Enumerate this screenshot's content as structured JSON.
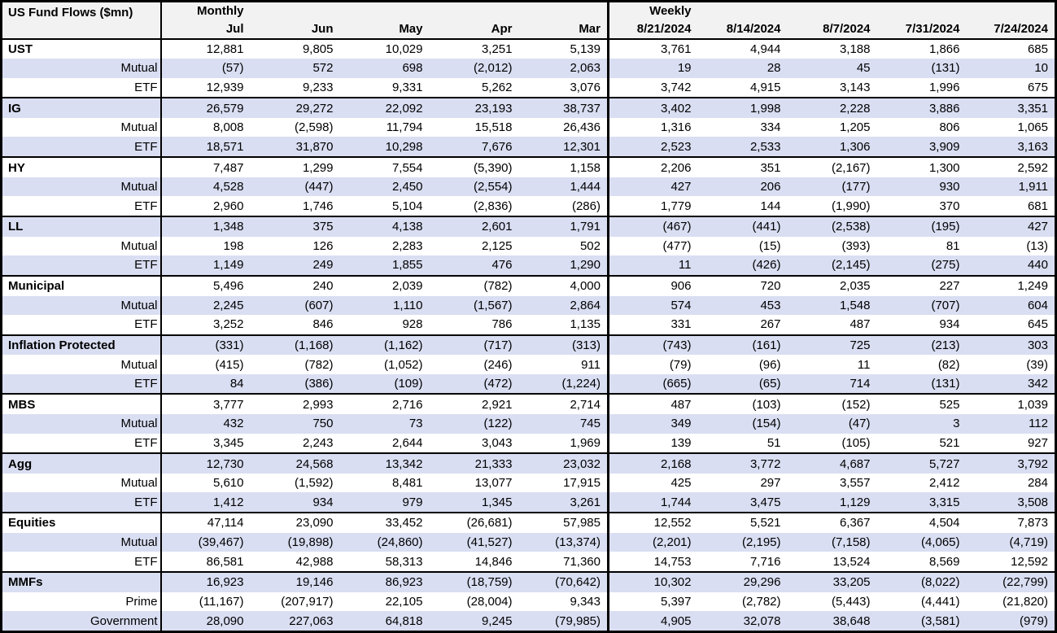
{
  "table": {
    "title": "US Fund Flows ($mn)",
    "sections": [
      {
        "label": "Monthly",
        "columns": [
          "Jul",
          "Jun",
          "May",
          "Apr",
          "Mar"
        ]
      },
      {
        "label": "Weekly",
        "columns": [
          "8/21/2024",
          "8/14/2024",
          "8/7/2024",
          "7/31/2024",
          "7/24/2024"
        ]
      }
    ],
    "groups": [
      {
        "name": "UST",
        "rows": [
          {
            "label": "UST",
            "monthly": [
              "12,881",
              "9,805",
              "10,029",
              "3,251",
              "5,139"
            ],
            "weekly": [
              "3,761",
              "4,944",
              "3,188",
              "1,866",
              "685"
            ]
          },
          {
            "label": "Mutual",
            "monthly": [
              "(57)",
              "572",
              "698",
              "(2,012)",
              "2,063"
            ],
            "weekly": [
              "19",
              "28",
              "45",
              "(131)",
              "10"
            ]
          },
          {
            "label": "ETF",
            "monthly": [
              "12,939",
              "9,233",
              "9,331",
              "5,262",
              "3,076"
            ],
            "weekly": [
              "3,742",
              "4,915",
              "3,143",
              "1,996",
              "675"
            ]
          }
        ]
      },
      {
        "name": "IG",
        "rows": [
          {
            "label": "IG",
            "monthly": [
              "26,579",
              "29,272",
              "22,092",
              "23,193",
              "38,737"
            ],
            "weekly": [
              "3,402",
              "1,998",
              "2,228",
              "3,886",
              "3,351"
            ]
          },
          {
            "label": "Mutual",
            "monthly": [
              "8,008",
              "(2,598)",
              "11,794",
              "15,518",
              "26,436"
            ],
            "weekly": [
              "1,316",
              "334",
              "1,205",
              "806",
              "1,065"
            ]
          },
          {
            "label": "ETF",
            "monthly": [
              "18,571",
              "31,870",
              "10,298",
              "7,676",
              "12,301"
            ],
            "weekly": [
              "2,523",
              "2,533",
              "1,306",
              "3,909",
              "3,163"
            ]
          }
        ]
      },
      {
        "name": "HY",
        "rows": [
          {
            "label": "HY",
            "monthly": [
              "7,487",
              "1,299",
              "7,554",
              "(5,390)",
              "1,158"
            ],
            "weekly": [
              "2,206",
              "351",
              "(2,167)",
              "1,300",
              "2,592"
            ]
          },
          {
            "label": "Mutual",
            "monthly": [
              "4,528",
              "(447)",
              "2,450",
              "(2,554)",
              "1,444"
            ],
            "weekly": [
              "427",
              "206",
              "(177)",
              "930",
              "1,911"
            ]
          },
          {
            "label": "ETF",
            "monthly": [
              "2,960",
              "1,746",
              "5,104",
              "(2,836)",
              "(286)"
            ],
            "weekly": [
              "1,779",
              "144",
              "(1,990)",
              "370",
              "681"
            ]
          }
        ]
      },
      {
        "name": "LL",
        "rows": [
          {
            "label": "LL",
            "monthly": [
              "1,348",
              "375",
              "4,138",
              "2,601",
              "1,791"
            ],
            "weekly": [
              "(467)",
              "(441)",
              "(2,538)",
              "(195)",
              "427"
            ]
          },
          {
            "label": "Mutual",
            "monthly": [
              "198",
              "126",
              "2,283",
              "2,125",
              "502"
            ],
            "weekly": [
              "(477)",
              "(15)",
              "(393)",
              "81",
              "(13)"
            ]
          },
          {
            "label": "ETF",
            "monthly": [
              "1,149",
              "249",
              "1,855",
              "476",
              "1,290"
            ],
            "weekly": [
              "11",
              "(426)",
              "(2,145)",
              "(275)",
              "440"
            ]
          }
        ]
      },
      {
        "name": "Municipal",
        "rows": [
          {
            "label": "Municipal",
            "monthly": [
              "5,496",
              "240",
              "2,039",
              "(782)",
              "4,000"
            ],
            "weekly": [
              "906",
              "720",
              "2,035",
              "227",
              "1,249"
            ]
          },
          {
            "label": "Mutual",
            "monthly": [
              "2,245",
              "(607)",
              "1,110",
              "(1,567)",
              "2,864"
            ],
            "weekly": [
              "574",
              "453",
              "1,548",
              "(707)",
              "604"
            ]
          },
          {
            "label": "ETF",
            "monthly": [
              "3,252",
              "846",
              "928",
              "786",
              "1,135"
            ],
            "weekly": [
              "331",
              "267",
              "487",
              "934",
              "645"
            ]
          }
        ]
      },
      {
        "name": "Inflation Protected",
        "rows": [
          {
            "label": "Inflation Protected",
            "monthly": [
              "(331)",
              "(1,168)",
              "(1,162)",
              "(717)",
              "(313)"
            ],
            "weekly": [
              "(743)",
              "(161)",
              "725",
              "(213)",
              "303"
            ]
          },
          {
            "label": "Mutual",
            "monthly": [
              "(415)",
              "(782)",
              "(1,052)",
              "(246)",
              "911"
            ],
            "weekly": [
              "(79)",
              "(96)",
              "11",
              "(82)",
              "(39)"
            ]
          },
          {
            "label": "ETF",
            "monthly": [
              "84",
              "(386)",
              "(109)",
              "(472)",
              "(1,224)"
            ],
            "weekly": [
              "(665)",
              "(65)",
              "714",
              "(131)",
              "342"
            ]
          }
        ]
      },
      {
        "name": "MBS",
        "rows": [
          {
            "label": "MBS",
            "monthly": [
              "3,777",
              "2,993",
              "2,716",
              "2,921",
              "2,714"
            ],
            "weekly": [
              "487",
              "(103)",
              "(152)",
              "525",
              "1,039"
            ]
          },
          {
            "label": "Mutual",
            "monthly": [
              "432",
              "750",
              "73",
              "(122)",
              "745"
            ],
            "weekly": [
              "349",
              "(154)",
              "(47)",
              "3",
              "112"
            ]
          },
          {
            "label": "ETF",
            "monthly": [
              "3,345",
              "2,243",
              "2,644",
              "3,043",
              "1,969"
            ],
            "weekly": [
              "139",
              "51",
              "(105)",
              "521",
              "927"
            ]
          }
        ]
      },
      {
        "name": "Agg",
        "rows": [
          {
            "label": "Agg",
            "monthly": [
              "12,730",
              "24,568",
              "13,342",
              "21,333",
              "23,032"
            ],
            "weekly": [
              "2,168",
              "3,772",
              "4,687",
              "5,727",
              "3,792"
            ]
          },
          {
            "label": "Mutual",
            "monthly": [
              "5,610",
              "(1,592)",
              "8,481",
              "13,077",
              "17,915"
            ],
            "weekly": [
              "425",
              "297",
              "3,557",
              "2,412",
              "284"
            ]
          },
          {
            "label": "ETF",
            "monthly": [
              "1,412",
              "934",
              "979",
              "1,345",
              "3,261"
            ],
            "weekly": [
              "1,744",
              "3,475",
              "1,129",
              "3,315",
              "3,508"
            ]
          }
        ]
      },
      {
        "name": "Equities",
        "rows": [
          {
            "label": "Equities",
            "monthly": [
              "47,114",
              "23,090",
              "33,452",
              "(26,681)",
              "57,985"
            ],
            "weekly": [
              "12,552",
              "5,521",
              "6,367",
              "4,504",
              "7,873"
            ]
          },
          {
            "label": "Mutual",
            "monthly": [
              "(39,467)",
              "(19,898)",
              "(24,860)",
              "(41,527)",
              "(13,374)"
            ],
            "weekly": [
              "(2,201)",
              "(2,195)",
              "(7,158)",
              "(4,065)",
              "(4,719)"
            ]
          },
          {
            "label": "ETF",
            "monthly": [
              "86,581",
              "42,988",
              "58,313",
              "14,846",
              "71,360"
            ],
            "weekly": [
              "14,753",
              "7,716",
              "13,524",
              "8,569",
              "12,592"
            ]
          }
        ]
      },
      {
        "name": "MMFs",
        "rows": [
          {
            "label": "MMFs",
            "monthly": [
              "16,923",
              "19,146",
              "86,923",
              "(18,759)",
              "(70,642)"
            ],
            "weekly": [
              "10,302",
              "29,296",
              "33,205",
              "(8,022)",
              "(22,799)"
            ]
          },
          {
            "label": "Prime",
            "monthly": [
              "(11,167)",
              "(207,917)",
              "22,105",
              "(28,004)",
              "9,343"
            ],
            "weekly": [
              "5,397",
              "(2,782)",
              "(5,443)",
              "(4,441)",
              "(21,820)"
            ]
          },
          {
            "label": "Government",
            "monthly": [
              "28,090",
              "227,063",
              "64,818",
              "9,245",
              "(79,985)"
            ],
            "weekly": [
              "4,905",
              "32,078",
              "38,648",
              "(3,581)",
              "(979)"
            ]
          }
        ]
      }
    ]
  }
}
